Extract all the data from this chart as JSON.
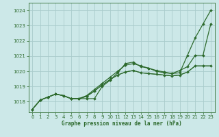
{
  "title": "Graphe pression niveau de la mer (hPa)",
  "bg_color": "#cce8e8",
  "grid_color": "#aacccc",
  "line_color": "#2d6a2d",
  "marker_color": "#2d6a2d",
  "xlim": [
    -0.5,
    23.5
  ],
  "ylim": [
    1017.3,
    1024.5
  ],
  "yticks": [
    1018,
    1019,
    1020,
    1021,
    1022,
    1023,
    1024
  ],
  "xticks": [
    0,
    1,
    2,
    3,
    4,
    5,
    6,
    7,
    8,
    9,
    10,
    11,
    12,
    13,
    14,
    15,
    16,
    17,
    18,
    19,
    20,
    21,
    22,
    23
  ],
  "series": [
    {
      "y": [
        1017.5,
        1018.1,
        1018.3,
        1018.5,
        1018.4,
        1018.2,
        1018.2,
        1018.2,
        1018.2,
        1019.0,
        1019.4,
        1019.9,
        1020.5,
        1020.6,
        1020.3,
        1020.2,
        1020.0,
        1019.9,
        1019.85,
        1019.9,
        1021.05,
        1022.2,
        1023.1,
        1024.0
      ],
      "marker": true,
      "linewidth": 0.9
    },
    {
      "y": [
        1017.5,
        1018.1,
        1018.3,
        1018.5,
        1018.4,
        1018.2,
        1018.2,
        1018.4,
        1018.8,
        1019.2,
        1019.6,
        1020.0,
        1020.4,
        1020.5,
        1020.35,
        1020.2,
        1020.05,
        1019.95,
        1019.85,
        1020.05,
        1020.3,
        1021.05,
        1021.05,
        1023.1
      ],
      "marker": true,
      "linewidth": 0.9
    },
    {
      "y": [
        1017.5,
        1018.1,
        1018.3,
        1018.5,
        1018.4,
        1018.2,
        1018.2,
        1018.35,
        1018.7,
        1019.1,
        1019.45,
        1019.75,
        1019.95,
        1020.05,
        1019.9,
        1019.85,
        1019.8,
        1019.75,
        1019.7,
        1019.75,
        1019.95,
        1020.35,
        1020.35,
        1020.35
      ],
      "marker": true,
      "linewidth": 0.9
    },
    {
      "y": [
        1017.5,
        1018.1,
        1018.3,
        1018.5,
        1018.4,
        1018.2,
        1018.2,
        1018.35,
        1018.7,
        1019.1,
        1019.45,
        1019.75,
        1019.95,
        1020.05,
        1019.9,
        1019.85,
        1019.8,
        1019.75,
        1019.7,
        1019.75,
        1019.95,
        1020.35,
        1020.35,
        1020.35
      ],
      "marker": false,
      "linewidth": 0.7
    }
  ],
  "title_fontsize": 5.5,
  "tick_fontsize": 5.0,
  "figsize": [
    3.2,
    2.0
  ],
  "dpi": 100
}
